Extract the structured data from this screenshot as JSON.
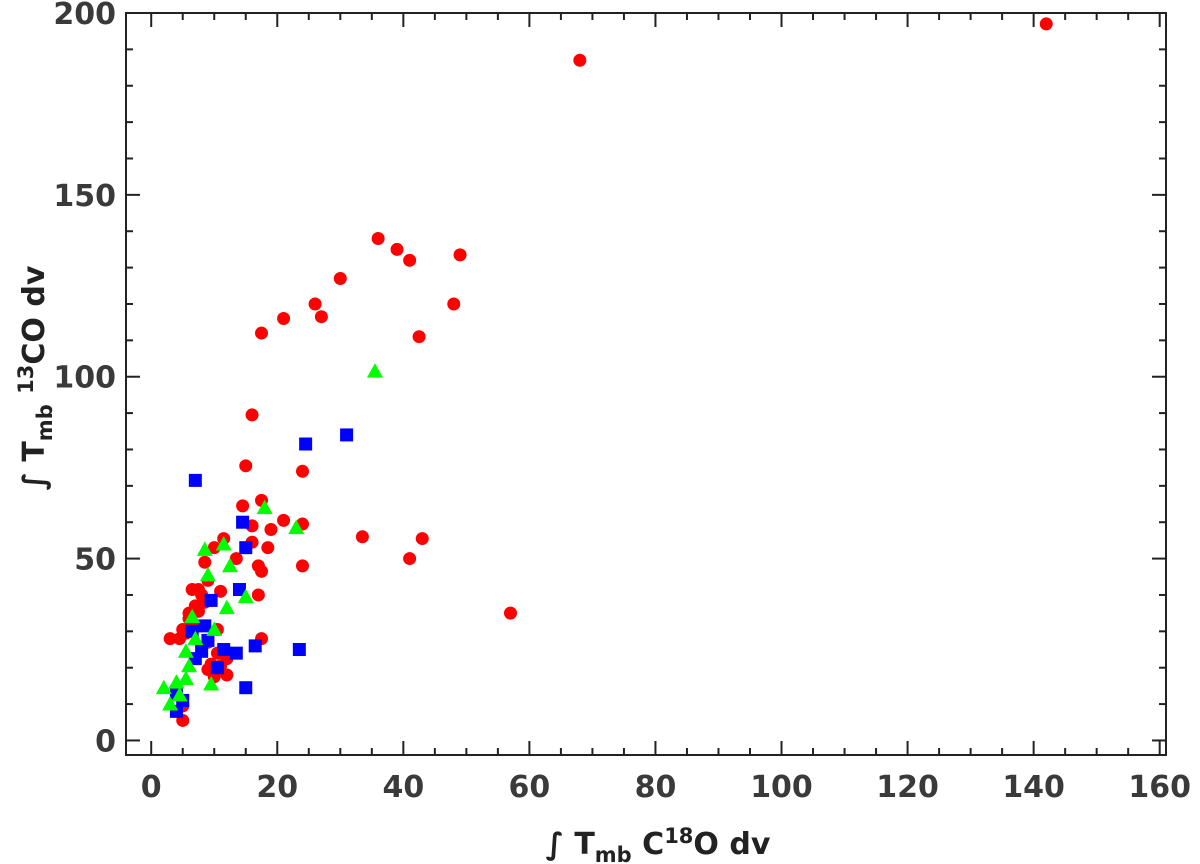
{
  "chart_data": {
    "type": "scatter",
    "title": "",
    "xlabel": {
      "prefix": "∫ T",
      "sub": "mb",
      "mid": " C",
      "sup": "18",
      "suffix": "O dv"
    },
    "ylabel": {
      "prefix": "∫ T",
      "sub": "mb",
      "mid": " ",
      "sup": "13",
      "suffix": "CO dv"
    },
    "xlim": [
      -4,
      161
    ],
    "ylim": [
      -4,
      200
    ],
    "xticks": [
      0,
      20,
      40,
      60,
      80,
      100,
      120,
      140,
      160
    ],
    "yticks": [
      0,
      50,
      100,
      150,
      200
    ],
    "xtick_labels": [
      "0",
      "20",
      "40",
      "60",
      "80",
      "100",
      "120",
      "140",
      "160"
    ],
    "ytick_labels": [
      "0",
      "50",
      "100",
      "150",
      "200"
    ],
    "colors": {
      "circles": "#ff0000",
      "squares": "#0000ff",
      "triangles": "#00ff00",
      "axis": "#222222"
    },
    "series": [
      {
        "name": "red circles",
        "marker": "circle",
        "color": "#ff0000",
        "points": [
          [
            142.0,
            197.0
          ],
          [
            68.0,
            187.0
          ],
          [
            36.0,
            138.0
          ],
          [
            39.0,
            135.0
          ],
          [
            41.0,
            132.0
          ],
          [
            49.0,
            133.5
          ],
          [
            30.0,
            127.0
          ],
          [
            26.0,
            120.0
          ],
          [
            27.0,
            116.5
          ],
          [
            21.0,
            116.0
          ],
          [
            48.0,
            120.0
          ],
          [
            17.5,
            112.0
          ],
          [
            42.5,
            111.0
          ],
          [
            16.0,
            89.5
          ],
          [
            15.0,
            75.5
          ],
          [
            24.0,
            74.0
          ],
          [
            17.5,
            66.0
          ],
          [
            14.5,
            64.5
          ],
          [
            21.0,
            60.5
          ],
          [
            24.0,
            59.5
          ],
          [
            16.0,
            59.0
          ],
          [
            19.0,
            58.0
          ],
          [
            33.5,
            56.0
          ],
          [
            43.0,
            55.5
          ],
          [
            11.5,
            55.5
          ],
          [
            16.0,
            54.5
          ],
          [
            10.0,
            53.0
          ],
          [
            18.5,
            53.0
          ],
          [
            13.5,
            50.0
          ],
          [
            41.0,
            50.0
          ],
          [
            8.5,
            49.0
          ],
          [
            17.0,
            48.0
          ],
          [
            24.0,
            48.0
          ],
          [
            17.5,
            46.5
          ],
          [
            9.0,
            44.0
          ],
          [
            6.5,
            41.5
          ],
          [
            7.5,
            41.5
          ],
          [
            11.0,
            41.0
          ],
          [
            8.0,
            40.0
          ],
          [
            17.0,
            40.0
          ],
          [
            8.5,
            38.0
          ],
          [
            7.0,
            37.0
          ],
          [
            7.5,
            35.5
          ],
          [
            6.0,
            35.0
          ],
          [
            57.0,
            35.0
          ],
          [
            6.0,
            33.5
          ],
          [
            6.5,
            32.0
          ],
          [
            5.0,
            30.5
          ],
          [
            10.5,
            30.5
          ],
          [
            5.5,
            29.5
          ],
          [
            3.0,
            28.0
          ],
          [
            4.5,
            28.0
          ],
          [
            17.5,
            28.0
          ],
          [
            9.0,
            27.0
          ],
          [
            10.5,
            24.0
          ],
          [
            12.0,
            22.5
          ],
          [
            9.5,
            21.0
          ],
          [
            11.0,
            20.5
          ],
          [
            9.0,
            19.5
          ],
          [
            12.0,
            18.0
          ],
          [
            10.0,
            17.5
          ],
          [
            5.0,
            9.5
          ],
          [
            5.0,
            5.5
          ]
        ]
      },
      {
        "name": "blue squares",
        "marker": "square",
        "color": "#0000ff",
        "points": [
          [
            7.0,
            71.5
          ],
          [
            24.5,
            81.5
          ],
          [
            31.0,
            84.0
          ],
          [
            14.5,
            60.0
          ],
          [
            15.0,
            53.0
          ],
          [
            14.0,
            41.5
          ],
          [
            9.5,
            38.5
          ],
          [
            8.5,
            31.5
          ],
          [
            6.5,
            30.0
          ],
          [
            9.0,
            27.5
          ],
          [
            16.5,
            26.0
          ],
          [
            23.5,
            25.0
          ],
          [
            11.5,
            25.0
          ],
          [
            8.0,
            24.5
          ],
          [
            13.5,
            24.0
          ],
          [
            7.0,
            22.5
          ],
          [
            10.5,
            20.0
          ],
          [
            15.0,
            14.5
          ],
          [
            4.0,
            13.0
          ],
          [
            5.0,
            11.0
          ],
          [
            4.0,
            8.0
          ]
        ]
      },
      {
        "name": "green triangles",
        "marker": "triangle",
        "color": "#00ff00",
        "points": [
          [
            35.5,
            101.5
          ],
          [
            18.0,
            64.0
          ],
          [
            23.0,
            58.5
          ],
          [
            11.5,
            54.0
          ],
          [
            8.5,
            52.5
          ],
          [
            12.5,
            48.0
          ],
          [
            9.0,
            45.5
          ],
          [
            15.0,
            39.5
          ],
          [
            12.0,
            36.5
          ],
          [
            6.5,
            34.0
          ],
          [
            10.0,
            30.5
          ],
          [
            7.0,
            28.0
          ],
          [
            5.5,
            24.5
          ],
          [
            6.0,
            20.5
          ],
          [
            5.5,
            17.0
          ],
          [
            9.5,
            15.5
          ],
          [
            4.0,
            16.0
          ],
          [
            2.0,
            14.5
          ],
          [
            4.5,
            12.5
          ],
          [
            3.0,
            10.0
          ]
        ]
      }
    ]
  }
}
